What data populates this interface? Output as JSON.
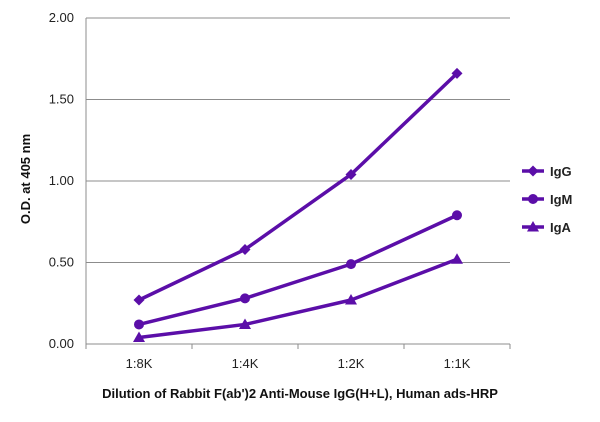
{
  "chart_data": {
    "type": "line",
    "title": "",
    "xlabel": "Dilution of Rabbit F(ab')2 Anti-Mouse IgG(H+L), Human ads-HRP",
    "ylabel": "O.D. at 405 nm",
    "categories": [
      "1:8K",
      "1:4K",
      "1:2K",
      "1:1K"
    ],
    "ylim": [
      0,
      2.0
    ],
    "yticks": [
      "0.00",
      "0.50",
      "1.00",
      "1.50",
      "2.00"
    ],
    "grid": "horizontal",
    "legend_position": "right",
    "line_color": "#5b0ea8",
    "series": [
      {
        "name": "IgG",
        "marker": "diamond",
        "values": [
          0.27,
          0.58,
          1.04,
          1.66
        ]
      },
      {
        "name": "IgM",
        "marker": "circle",
        "values": [
          0.12,
          0.28,
          0.49,
          0.79
        ]
      },
      {
        "name": "IgA",
        "marker": "triangle",
        "values": [
          0.04,
          0.12,
          0.27,
          0.52
        ]
      }
    ]
  }
}
